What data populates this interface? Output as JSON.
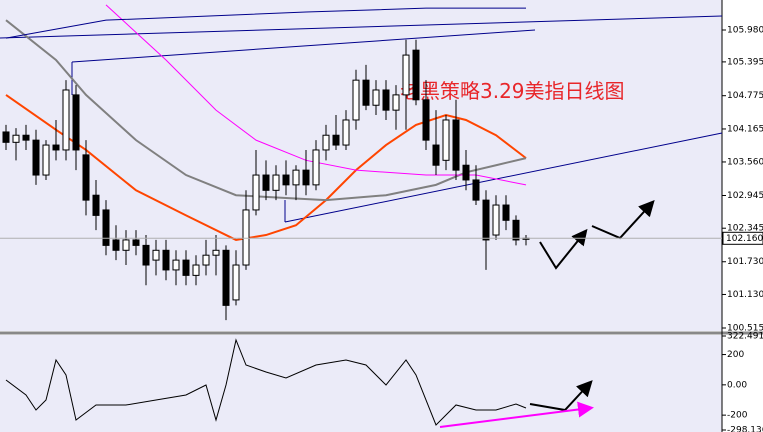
{
  "chart_data": [
    {
      "type": "candlestick",
      "annotation": "老黑策略3.29美指日线图",
      "xlim": [
        -0.6,
        71.6
      ],
      "ylim": [
        100.46,
        106.53
      ],
      "yticks": [
        {
          "value": 105.98,
          "label": "105.980"
        },
        {
          "value": 105.395,
          "label": "105.395"
        },
        {
          "value": 104.775,
          "label": "104.775"
        },
        {
          "value": 104.165,
          "label": "104.165"
        },
        {
          "value": 103.56,
          "label": "103.560"
        },
        {
          "value": 102.945,
          "label": "102.945"
        },
        {
          "value": 102.345,
          "label": "102.345"
        },
        {
          "value": 101.73,
          "label": "101.730"
        },
        {
          "value": 101.13,
          "label": "101.130"
        },
        {
          "value": 100.515,
          "label": "100.515"
        }
      ],
      "last_price": {
        "value": 102.16,
        "label": "102.160"
      },
      "open": [
        104.11,
        103.92,
        104.05,
        103.96,
        103.32,
        103.87,
        103.78,
        104.79,
        103.69,
        102.95,
        102.68,
        102.13,
        101.94,
        102.13,
        102.03,
        101.76,
        101.94,
        101.58,
        101.76,
        101.48,
        101.67,
        101.85,
        101.94,
        101.03,
        101.67,
        102.68,
        103.32,
        103.04,
        103.32,
        103.14,
        103.41,
        103.14,
        103.78,
        104.05,
        103.87,
        104.33,
        105.06,
        104.6,
        104.88,
        104.51,
        104.79,
        105.61,
        104.7,
        103.87,
        103.59,
        104.33,
        103.5,
        103.23,
        102.86,
        102.22,
        102.77,
        102.49,
        102.16
      ],
      "high": [
        104.24,
        104.18,
        104.24,
        104.15,
        103.96,
        104.33,
        105.06,
        104.97,
        103.96,
        103.23,
        102.86,
        102.4,
        102.31,
        102.31,
        102.22,
        102.13,
        102.13,
        101.94,
        101.94,
        101.85,
        102.13,
        102.22,
        102.03,
        101.94,
        103.04,
        103.78,
        103.59,
        103.5,
        103.59,
        103.5,
        103.78,
        103.96,
        104.24,
        104.42,
        104.51,
        105.25,
        105.34,
        105.06,
        105.06,
        104.97,
        105.8,
        105.8,
        105.06,
        104.51,
        104.42,
        104.7,
        103.78,
        103.5,
        103.04,
        102.95,
        102.95,
        102.58,
        102.22
      ],
      "low": [
        103.78,
        103.59,
        103.78,
        103.14,
        103.23,
        103.59,
        103.59,
        103.41,
        102.58,
        102.31,
        101.85,
        101.76,
        101.67,
        101.85,
        101.3,
        101.48,
        101.39,
        101.3,
        101.3,
        101.3,
        101.48,
        101.48,
        100.66,
        100.93,
        101.58,
        102.58,
        102.86,
        102.86,
        102.95,
        102.86,
        102.95,
        103.04,
        103.59,
        103.78,
        103.78,
        104.15,
        104.51,
        104.42,
        104.33,
        104.15,
        104.15,
        104.6,
        103.78,
        103.32,
        103.41,
        103.23,
        103.04,
        102.77,
        101.58,
        102.13,
        102.31,
        102.03,
        102.03
      ],
      "close": [
        103.92,
        104.05,
        103.96,
        103.32,
        103.87,
        103.78,
        104.88,
        103.78,
        102.86,
        102.58,
        102.03,
        101.94,
        102.13,
        102.03,
        101.67,
        101.94,
        101.58,
        101.76,
        101.48,
        101.67,
        101.85,
        101.94,
        100.93,
        101.67,
        102.68,
        103.32,
        103.04,
        103.32,
        103.14,
        103.41,
        103.14,
        103.78,
        104.05,
        103.87,
        104.33,
        105.06,
        104.6,
        104.88,
        104.51,
        104.79,
        105.52,
        104.7,
        103.96,
        103.5,
        104.33,
        103.41,
        103.23,
        102.86,
        102.13,
        102.77,
        102.49,
        102.13,
        102.16
      ],
      "overlays": [
        {
          "color": "#ff4500",
          "width": 2,
          "x": [
            0,
            5,
            8,
            13,
            18,
            23,
            26,
            29,
            32,
            35,
            38,
            41,
            44,
            46,
            49,
            52
          ],
          "values": [
            104.79,
            104.15,
            103.78,
            103.04,
            102.58,
            102.13,
            102.22,
            102.4,
            102.86,
            103.41,
            103.87,
            104.24,
            104.42,
            104.33,
            104.05,
            103.63
          ]
        },
        {
          "color": "#808080",
          "width": 2,
          "x": [
            0,
            5,
            8,
            13,
            18,
            23,
            28,
            32,
            38,
            43,
            46,
            49,
            52
          ],
          "values": [
            106.16,
            105.43,
            104.79,
            103.96,
            103.32,
            102.95,
            102.9,
            102.86,
            102.95,
            103.14,
            103.37,
            103.5,
            103.63
          ]
        },
        {
          "color": "#ff00ff",
          "width": 1,
          "x": [
            10,
            16,
            21,
            25,
            30,
            35,
            42,
            47,
            52
          ],
          "values": [
            106.44,
            105.43,
            104.51,
            103.96,
            103.59,
            103.41,
            103.32,
            103.32,
            103.14
          ]
        },
        {
          "color": "#00008b",
          "width": 1,
          "x": [
            0,
            10,
            30,
            42,
            52
          ],
          "values": [
            105.83,
            106.16,
            106.31,
            106.38,
            106.38
          ]
        }
      ]
    },
    {
      "type": "line",
      "xlim": [
        -0.6,
        71.6
      ],
      "ylim": [
        -298.136,
        322.4918
      ],
      "yticks": [
        322.4918,
        200,
        {
          "value": 0,
          "label": "0.00"
        },
        -200,
        -298.136
      ],
      "color": "#000000",
      "x": [
        0,
        2,
        3,
        4,
        5,
        6,
        7,
        9,
        12,
        15,
        18,
        20,
        21,
        22,
        23,
        24,
        26,
        28,
        31,
        34,
        36,
        38,
        40,
        41,
        43,
        45,
        47,
        49,
        51,
        52
      ],
      "values": [
        32.0,
        -67.0,
        -166.0,
        -100.0,
        164.1,
        65.0,
        -232.1,
        -133.0,
        -133.0,
        -100.0,
        -67.0,
        -1.0,
        -232.1,
        -1.0,
        296.1,
        131.0,
        84.8,
        45.2,
        131.0,
        164.1,
        131.0,
        -1.0,
        164.1,
        65.0,
        -265.1,
        -133.0,
        -166.0,
        -166.0,
        -126.4,
        -152.8
      ]
    }
  ]
}
